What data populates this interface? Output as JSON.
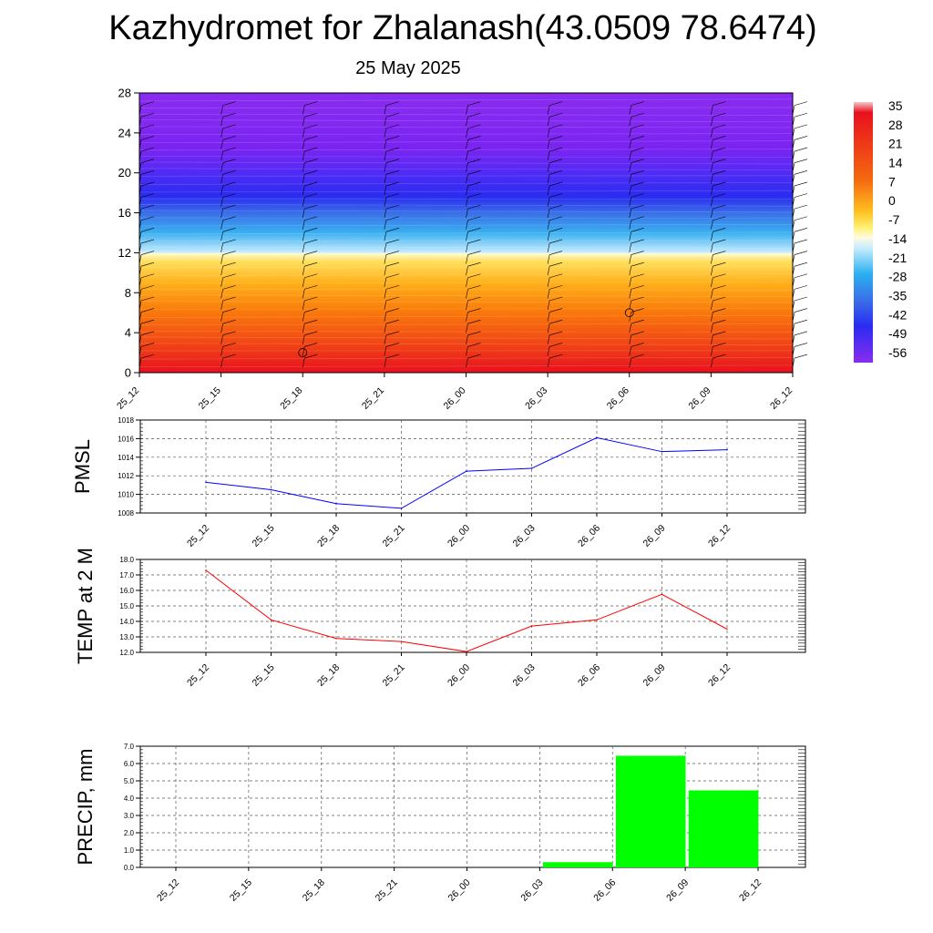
{
  "header": {
    "title": "Kazhydromet for Zhalanash(43.0509 78.6474)",
    "date": "25 May 2025"
  },
  "colors": {
    "pmsl_line": "#0000ff",
    "temp_line": "#ff0000",
    "precip_bar": "#00ff00"
  },
  "chart_data": [
    {
      "type": "heatmap",
      "name": "upper-air-temperature",
      "x": [
        "25_12",
        "25_15",
        "25_18",
        "25_21",
        "26_00",
        "26_03",
        "26_06",
        "26_09",
        "26_12"
      ],
      "ylim": [
        0,
        28
      ],
      "yticks": [
        "0",
        "4",
        "8",
        "12",
        "16",
        "20",
        "24",
        "28"
      ],
      "colorbar_labels": [
        "35",
        "28",
        "21",
        "14",
        "7",
        "0",
        "-7",
        "-14",
        "-21",
        "-28",
        "-35",
        "-42",
        "-49",
        "-56"
      ],
      "wind_barbs": true
    },
    {
      "type": "line",
      "ylabel": "PMSL",
      "x": [
        "25_12",
        "25_15",
        "25_18",
        "25_21",
        "26_00",
        "26_03",
        "26_06",
        "26_09",
        "26_12"
      ],
      "values": [
        1011.3,
        1010.5,
        1009.0,
        1008.5,
        1012.5,
        1012.8,
        1016.1,
        1014.6,
        1014.8
      ],
      "ylim": [
        1008,
        1018
      ],
      "yticks": [
        "1018",
        "1016",
        "1014",
        "1012",
        "1010",
        "1008"
      ],
      "grid": true
    },
    {
      "type": "line",
      "ylabel": "TEMP at 2 M",
      "x": [
        "25_12",
        "25_15",
        "25_18",
        "25_21",
        "26_00",
        "26_03",
        "26_06",
        "26_09",
        "26_12"
      ],
      "values": [
        17.3,
        14.1,
        12.9,
        12.7,
        12.05,
        13.7,
        14.1,
        15.75,
        13.5
      ],
      "ylim": [
        12,
        18
      ],
      "yticks": [
        "18.0",
        "17.0",
        "16.0",
        "15.0",
        "14.0",
        "13.0",
        "12.0"
      ],
      "grid": true
    },
    {
      "type": "bar",
      "ylabel": "PRECIP, mm",
      "categories": [
        "25_12",
        "25_15",
        "25_18",
        "25_21",
        "26_00",
        "26_03",
        "26_06",
        "26_09",
        "26_12"
      ],
      "values": [
        0,
        0,
        0,
        0,
        0,
        0,
        0.3,
        6.45,
        4.45
      ],
      "ylim": [
        0,
        7
      ],
      "yticks": [
        "7.0",
        "6.0",
        "5.0",
        "4.0",
        "3.0",
        "2.0",
        "1.0",
        "0.0"
      ],
      "grid": true
    }
  ]
}
